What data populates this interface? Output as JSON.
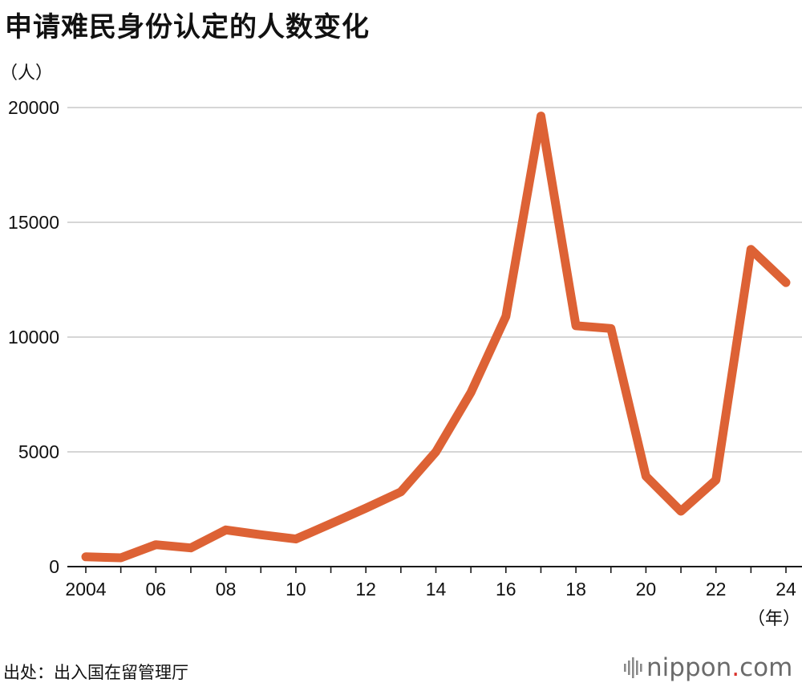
{
  "title": "申请难民身份认定的人数变化",
  "source": "出处：出入国在留管理厅",
  "brand": {
    "name": "nippon",
    "dot": ".",
    "suffix": "com",
    "dot_color": "#d9312b",
    "text_color": "#6b6b6b",
    "icon": "sound-bars-icon"
  },
  "colors": {
    "line": "#dd6235",
    "grid": "#c8c8c8",
    "axis": "#1a1a1a"
  },
  "chart_data": {
    "type": "line",
    "title": "申请难民身份认定的人数变化",
    "ylabel": "（人）",
    "xlabel": "（年）",
    "ylim": [
      0,
      20000
    ],
    "yticks": [
      0,
      5000,
      10000,
      15000,
      20000
    ],
    "xlim": [
      2004,
      2024
    ],
    "xticks": [
      {
        "value": 2004,
        "label": "2004"
      },
      {
        "value": 2006,
        "label": "06"
      },
      {
        "value": 2008,
        "label": "08"
      },
      {
        "value": 2010,
        "label": "10"
      },
      {
        "value": 2012,
        "label": "12"
      },
      {
        "value": 2014,
        "label": "14"
      },
      {
        "value": 2016,
        "label": "16"
      },
      {
        "value": 2018,
        "label": "18"
      },
      {
        "value": 2020,
        "label": "20"
      },
      {
        "value": 2022,
        "label": "22"
      },
      {
        "value": 2024,
        "label": "24"
      }
    ],
    "grid": true,
    "x": [
      2004,
      2005,
      2006,
      2007,
      2008,
      2009,
      2010,
      2011,
      2012,
      2013,
      2014,
      2015,
      2016,
      2017,
      2018,
      2019,
      2020,
      2021,
      2022,
      2023,
      2024
    ],
    "series": [
      {
        "values": [
          426,
          384,
          954,
          816,
          1599,
          1388,
          1202,
          1867,
          2545,
          3260,
          5000,
          7586,
          10901,
          19629,
          10493,
          10375,
          3936,
          2413,
          3772,
          13823,
          12373
        ]
      }
    ]
  }
}
